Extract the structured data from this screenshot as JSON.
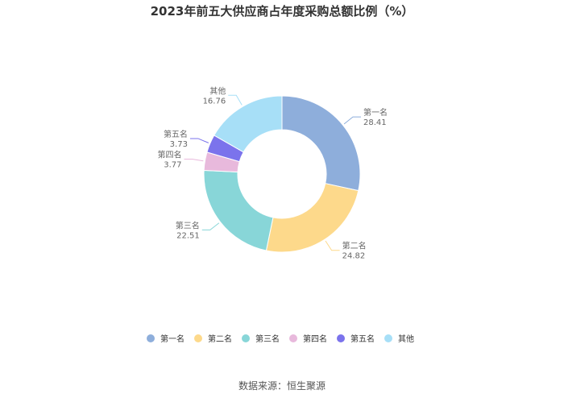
{
  "title": "2023年前五大供应商占年度采购总额比例（%）",
  "source": "数据来源：恒生聚源",
  "chart_data": {
    "type": "pie",
    "donut": true,
    "title": "2023年前五大供应商占年度采购总额比例（%）",
    "legend_position": "bottom",
    "slices": [
      {
        "name": "第一名",
        "value": 28.41,
        "color": "#8eaedb"
      },
      {
        "name": "第二名",
        "value": 24.82,
        "color": "#fdd98b"
      },
      {
        "name": "第三名",
        "value": 22.51,
        "color": "#88d6d8"
      },
      {
        "name": "第四名",
        "value": 3.77,
        "color": "#e8b9dc"
      },
      {
        "name": "第五名",
        "value": 3.73,
        "color": "#7b73ec"
      },
      {
        "name": "其他",
        "value": 16.76,
        "color": "#a7dff7"
      }
    ]
  }
}
